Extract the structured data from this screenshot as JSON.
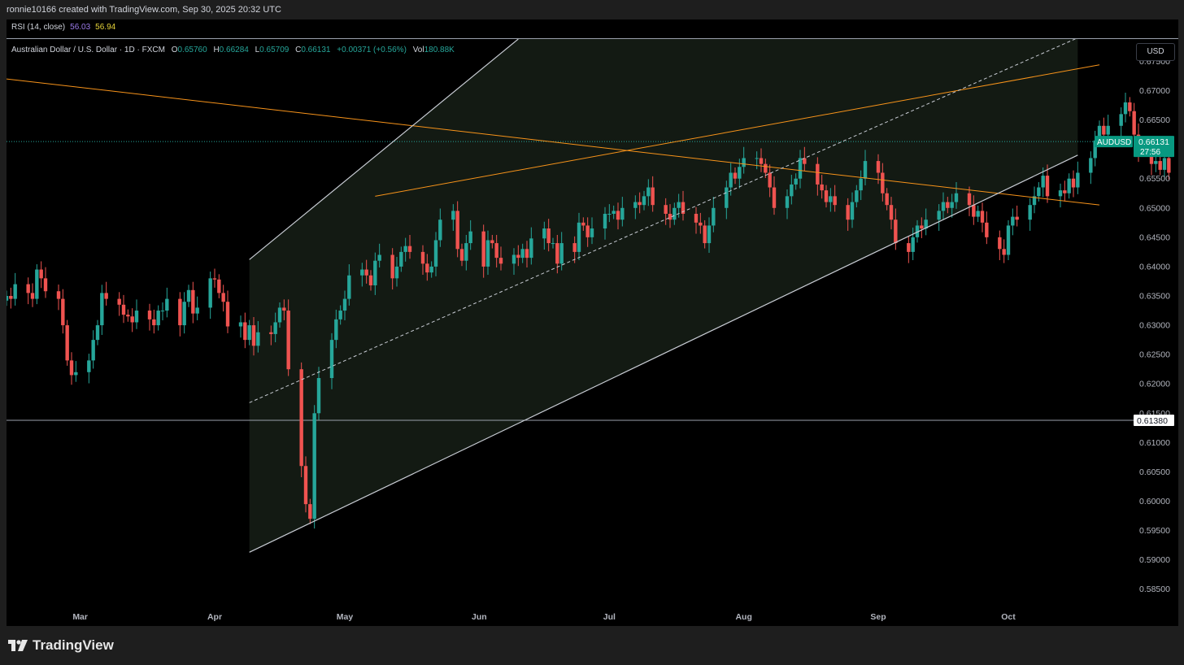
{
  "header": {
    "credit": "ronnie10166 created with TradingView.com, Sep 30, 2025 20:32 UTC"
  },
  "rsi": {
    "label": "RSI (14, close)",
    "value1": "56.03",
    "value2": "56.94"
  },
  "legend": {
    "symbol": "Australian Dollar / U.S. Dollar · 1D · FXCM",
    "open_label": "O",
    "open": "0.65760",
    "high_label": "H",
    "high": "0.66284",
    "low_label": "L",
    "low": "0.65709",
    "close_label": "C",
    "close": "0.66131",
    "change": "+0.00371 (+0.56%)",
    "vol_label": "Vol",
    "vol": "180.88K"
  },
  "currency_button": "USD",
  "footer": {
    "logo_text": "TradingView"
  },
  "colors": {
    "up": "#26a69a",
    "down": "#ef5350",
    "trendline": "#f7931a",
    "channel": "#c8ccd4",
    "channel_fill": "#131a13",
    "price_tag": "#089981"
  },
  "chart_data": {
    "type": "candlestick",
    "symbol": "AUDUSD",
    "timeframe": "1D",
    "y_ticks": [
      "0.67500",
      "0.67000",
      "0.66500",
      "0.66000",
      "0.65500",
      "0.65000",
      "0.64500",
      "0.64000",
      "0.63500",
      "0.63000",
      "0.62500",
      "0.62000",
      "0.61500",
      "0.61000",
      "0.60500",
      "0.60000",
      "0.59500",
      "0.59000",
      "0.58500"
    ],
    "ylim": [
      0.5815,
      0.6788
    ],
    "x_range": [
      "2025-02-12",
      "2025-10-22"
    ],
    "x_labels": [
      {
        "label": "Mar",
        "date": "2025-03-01"
      },
      {
        "label": "Apr",
        "date": "2025-04-01"
      },
      {
        "label": "May",
        "date": "2025-05-01"
      },
      {
        "label": "Jun",
        "date": "2025-06-01"
      },
      {
        "label": "Jul",
        "date": "2025-07-01"
      },
      {
        "label": "Aug",
        "date": "2025-08-01"
      },
      {
        "label": "Sep",
        "date": "2025-09-01"
      },
      {
        "label": "Oct",
        "date": "2025-10-01"
      }
    ],
    "candles_weekday_start": "2025-02-12",
    "candles_close": [
      0.635,
      0.6345,
      0.637,
      0.6355,
      0.6345,
      0.6395,
      0.638,
      0.6358,
      0.6345,
      0.63,
      0.624,
      0.6215,
      0.622,
      0.624,
      0.6275,
      0.63,
      0.6355,
      0.6345,
      0.6335,
      0.6318,
      0.6315,
      0.6305,
      0.6325,
      0.631,
      0.63,
      0.6325,
      0.6325,
      0.6345,
      0.63,
      0.634,
      0.636,
      0.632,
      0.633,
      0.638,
      0.6378,
      0.6355,
      0.634,
      0.6298,
      0.6305,
      0.6275,
      0.63,
      0.6265,
      0.6288,
      0.6285,
      0.6305,
      0.633,
      0.6325,
      0.6225,
      0.606,
      0.5995,
      0.597,
      0.615,
      0.621,
      0.6275,
      0.631,
      0.6325,
      0.6345,
      0.6385,
      0.6395,
      0.6385,
      0.6368,
      0.641,
      0.642,
      0.638,
      0.64,
      0.6425,
      0.6435,
      0.6425,
      0.6405,
      0.639,
      0.64,
      0.6445,
      0.648,
      0.6495,
      0.643,
      0.641,
      0.644,
      0.646,
      0.64,
      0.6445,
      0.644,
      0.6415,
      0.6405,
      0.642,
      0.6415,
      0.643,
      0.6415,
      0.6448,
      0.6465,
      0.644,
      0.644,
      0.6405,
      0.644,
      0.6425,
      0.6475,
      0.647,
      0.645,
      0.6465,
      0.649,
      0.649,
      0.6495,
      0.648,
      0.65,
      0.651,
      0.6505,
      0.652,
      0.6535,
      0.6505,
      0.649,
      0.648,
      0.65,
      0.651,
      0.649,
      0.6475,
      0.647,
      0.644,
      0.647,
      0.65,
      0.6535,
      0.656,
      0.655,
      0.657,
      0.6585,
      0.6585,
      0.6575,
      0.656,
      0.6535,
      0.65,
      0.652,
      0.654,
      0.655,
      0.6585,
      0.6575,
      0.654,
      0.653,
      0.651,
      0.652,
      0.6505,
      0.648,
      0.651,
      0.653,
      0.655,
      0.658,
      0.656,
      0.6525,
      0.6505,
      0.648,
      0.644,
      0.6425,
      0.645,
      0.647,
      0.6465,
      0.648,
      0.6495,
      0.651,
      0.65,
      0.651,
      0.6525,
      0.6505,
      0.6485,
      0.6495,
      0.6475,
      0.645,
      0.643,
      0.642,
      0.647,
      0.6485,
      0.648,
      0.6505,
      0.652,
      0.6535,
      0.6555,
      0.652,
      0.653,
      0.6525,
      0.655,
      0.6535,
      0.656,
      0.6585,
      0.6615,
      0.664,
      0.6625,
      0.664,
      0.666,
      0.668,
      0.6665,
      0.6625,
      0.659,
      0.6575,
      0.658,
      0.6565,
      0.6585,
      0.656,
      0.654,
      0.655,
      0.6575,
      0.6613
    ],
    "last_price": "0.66131",
    "countdown": "27:56",
    "horizontal_level": "0.61380",
    "lines": [
      {
        "name": "descending-trendline",
        "from": [
          "2025-02-12",
          0.672
        ],
        "to": [
          "2025-10-22",
          0.6505
        ]
      },
      {
        "name": "rising-trendline",
        "from": [
          "2025-05-08",
          0.652
        ],
        "to": [
          "2025-10-22",
          0.6744
        ]
      },
      {
        "name": "channel-upper",
        "from": [
          "2025-04-09",
          0.6412
        ],
        "to": [
          "2025-06-10",
          0.6788
        ]
      },
      {
        "name": "channel-lower",
        "from": [
          "2025-04-09",
          0.5913
        ],
        "to": [
          "2025-10-17",
          0.659
        ]
      },
      {
        "name": "channel-midline",
        "from": [
          "2025-04-09",
          0.6168
        ],
        "to": [
          "2025-10-17",
          0.679
        ]
      }
    ]
  }
}
